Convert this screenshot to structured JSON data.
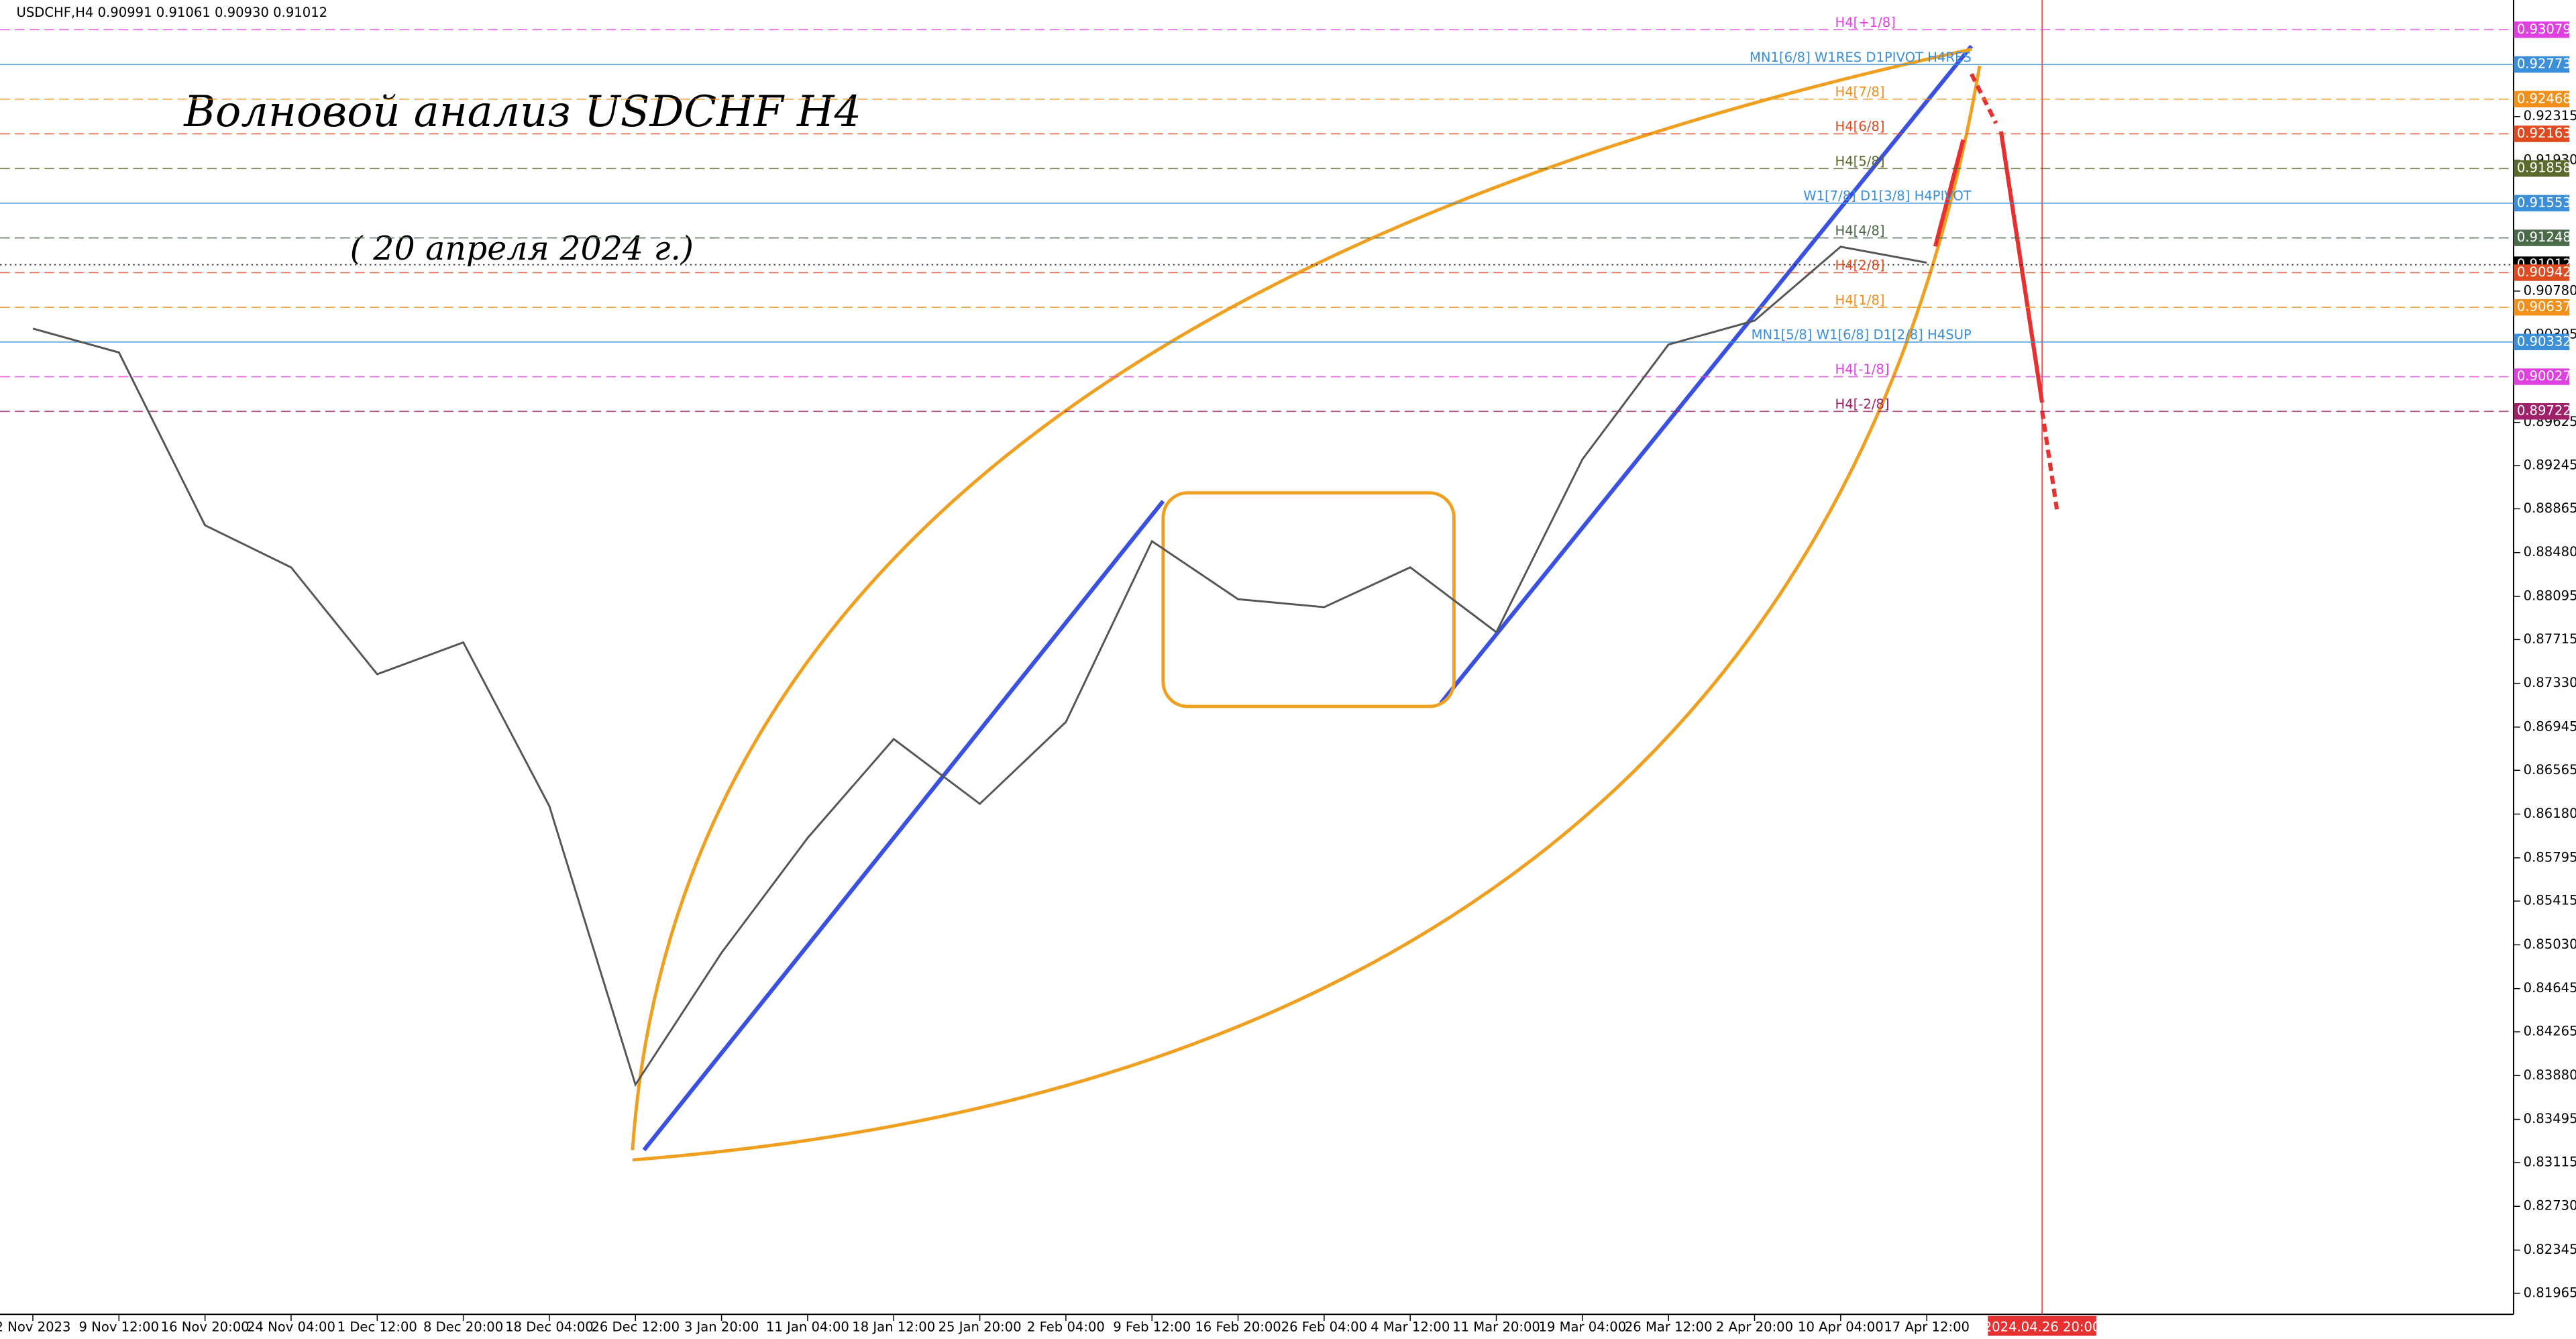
{
  "chart_data": {
    "type": "line",
    "header": "USDCHF,H4  0.90991 0.91061 0.90930 0.91012",
    "title": "Волновой анализ USDCHF H4",
    "subtitle": "( 20 апреля 2024 г.)",
    "categories": [
      "2 Nov 2023",
      "9 Nov 12:00",
      "16 Nov 20:00",
      "24 Nov 04:00",
      "1 Dec 12:00",
      "8 Dec 20:00",
      "18 Dec 04:00",
      "26 Dec 12:00",
      "3 Jan 20:00",
      "11 Jan 04:00",
      "18 Jan 12:00",
      "25 Jan 20:00",
      "2 Feb 04:00",
      "9 Feb 12:00",
      "16 Feb 20:00",
      "26 Feb 04:00",
      "4 Mar 12:00",
      "11 Mar 20:00",
      "19 Mar 04:00",
      "26 Mar 12:00",
      "2 Apr 20:00",
      "10 Apr 04:00",
      "17 Apr 12:00"
    ],
    "series": [
      {
        "name": "USDCHF",
        "color": "#555555",
        "values": [
          0.9045,
          0.9024,
          0.8872,
          0.8835,
          0.8741,
          0.8769,
          0.8625,
          0.838,
          0.8496,
          0.8597,
          0.8684,
          0.8627,
          0.8699,
          0.8858,
          0.8807,
          0.88,
          0.8835,
          0.8778,
          0.893,
          0.9031,
          0.9052,
          0.9117,
          0.9103
        ]
      }
    ],
    "cursor_label": "2024.04.26 20:00",
    "ylim": [
      0.8178,
      0.9334
    ],
    "yticks": [
      0.92315,
      {
        "value": 0.9193,
        "label": "0.91930"
      },
      {
        "value": 0.9078,
        "label": "0.90780"
      },
      0.90395,
      0.89625,
      0.89245,
      0.88865,
      {
        "value": 0.8848,
        "label": "0.88480"
      },
      0.88095,
      0.87715,
      {
        "value": 0.8733,
        "label": "0.87330"
      },
      0.86945,
      0.86565,
      {
        "value": 0.8618,
        "label": "0.86180"
      },
      0.85795,
      0.85415,
      {
        "value": 0.8503,
        "label": "0.85030"
      },
      0.84645,
      0.84265,
      {
        "value": 0.8388,
        "label": "0.83880"
      },
      0.83495,
      0.83115,
      {
        "value": 0.8273,
        "label": "0.82730"
      },
      0.82345,
      0.81965
    ],
    "levels": [
      {
        "value": 0.93079,
        "label": "H4[+1/8]",
        "color": "#e040e0",
        "style": "dashed"
      },
      {
        "value": 0.92773,
        "label": "MN1[6/8] W1RES D1PIVOT H4RES",
        "color": "#3a8fd8",
        "style": "solid"
      },
      {
        "value": 0.92468,
        "label": "H4[7/8]",
        "color": "#f0901a",
        "style": "dashed"
      },
      {
        "value": 0.92163,
        "label": "H4[6/8]",
        "color": "#e04a20",
        "style": "dashed"
      },
      {
        "value": 0.91858,
        "label": "H4[5/8]",
        "color": "#5a6a2a",
        "style": "dashed"
      },
      {
        "value": 0.91553,
        "label": "W1[7/8] D1[3/8] H4PIVOT",
        "color": "#3a8fd8",
        "style": "solid"
      },
      {
        "value": 0.91248,
        "label": "H4[4/8]",
        "color": "#4a6a4a",
        "style": "dashed"
      },
      {
        "value": 0.91012,
        "color": "#000000",
        "style": "dotted"
      },
      {
        "value": 0.90942,
        "label": "H4[2/8]",
        "color": "#e04a20",
        "style": "dashed"
      },
      {
        "value": 0.90637,
        "label": "H4[1/8]",
        "color": "#f0901a",
        "style": "dashed"
      },
      {
        "value": 0.90332,
        "label": "MN1[5/8] W1[6/8] D1[2/8] H4SUP",
        "color": "#3a8fd8",
        "style": "solid"
      },
      {
        "value": 0.90027,
        "label": "H4[-1/8]",
        "color": "#e040e0",
        "style": "dashed"
      },
      {
        "value": 0.89722,
        "label": "H4[-2/8]",
        "color": "#a0206a",
        "style": "dashed"
      }
    ]
  }
}
